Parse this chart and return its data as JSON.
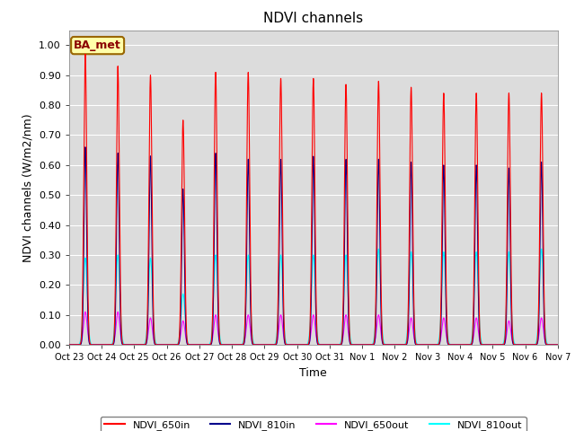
{
  "title": "NDVI channels",
  "xlabel": "Time",
  "ylabel": "NDVI channels (W/m2/nm)",
  "ylim": [
    0.0,
    1.05
  ],
  "yticks": [
    0.0,
    0.1,
    0.2,
    0.3,
    0.4,
    0.5,
    0.6,
    0.7,
    0.8,
    0.9,
    1.0
  ],
  "annotation": "BA_met",
  "bg_color": "#dcdcdc",
  "fig_color": "#ffffff",
  "line_colors": {
    "NDVI_650in": "#ff0000",
    "NDVI_810in": "#00008b",
    "NDVI_650out": "#ff00ff",
    "NDVI_810out": "#00ffff"
  },
  "legend_labels": [
    "NDVI_650in",
    "NDVI_810in",
    "NDVI_650out",
    "NDVI_810out"
  ],
  "num_days": 15,
  "day_labels": [
    "Oct 23",
    "Oct 24",
    "Oct 25",
    "Oct 26",
    "Oct 27",
    "Oct 28",
    "Oct 29",
    "Oct 30",
    "Oct 31",
    "Nov 1",
    "Nov 2",
    "Nov 3",
    "Nov 4",
    "Nov 5",
    "Nov 6",
    "Nov 7"
  ],
  "peak_650in": [
    0.97,
    0.93,
    0.9,
    0.75,
    0.91,
    0.91,
    0.89,
    0.89,
    0.87,
    0.88,
    0.86,
    0.84,
    0.84,
    0.84,
    0.84
  ],
  "peak_810in": [
    0.66,
    0.64,
    0.63,
    0.52,
    0.64,
    0.62,
    0.62,
    0.63,
    0.62,
    0.62,
    0.61,
    0.6,
    0.6,
    0.59,
    0.61
  ],
  "peak_650out": [
    0.11,
    0.11,
    0.09,
    0.08,
    0.1,
    0.1,
    0.1,
    0.1,
    0.1,
    0.1,
    0.09,
    0.09,
    0.09,
    0.08,
    0.09
  ],
  "peak_810out": [
    0.29,
    0.3,
    0.29,
    0.17,
    0.3,
    0.3,
    0.3,
    0.3,
    0.3,
    0.32,
    0.31,
    0.31,
    0.31,
    0.31,
    0.32
  ]
}
